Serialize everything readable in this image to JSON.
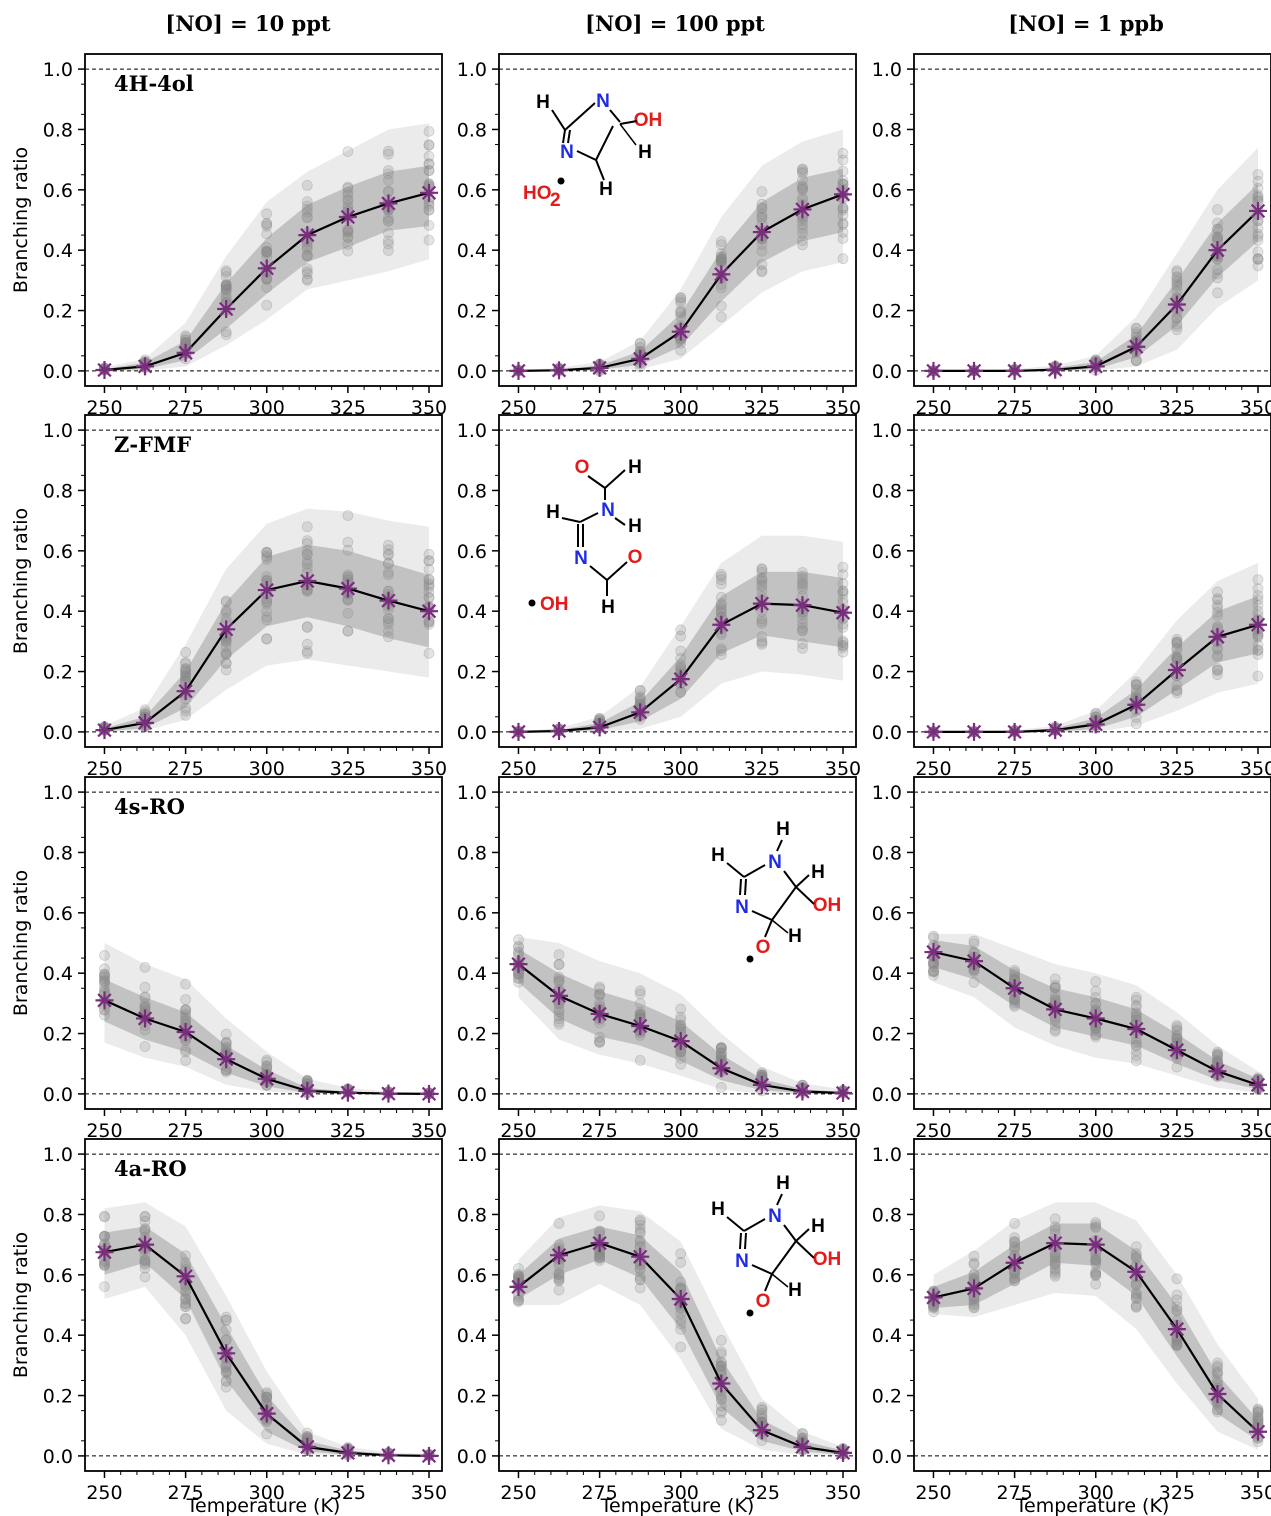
{
  "colors": {
    "band_outer": "#ebebeb",
    "band_inner": "#c2c2c2",
    "scatter": "#8a8a8a",
    "median_line": "#000000",
    "star_marker": "#7a2d7e",
    "mol_carbon": "#000000",
    "mol_nitrogen": "#1f2ce6",
    "mol_oxygen": "#e31b1b"
  },
  "chart_data": {
    "type": "line",
    "column_titles": [
      "[NO] = 10 ppt",
      "[NO] = 100 ppt",
      "[NO] = 1 ppb"
    ],
    "xlabel": "Temperature (K)",
    "ylabel": "Branching ratio",
    "x": [
      250,
      262.5,
      275,
      287.5,
      300,
      312.5,
      325,
      337.5,
      350
    ],
    "xticks": [
      250,
      275,
      300,
      325,
      350
    ],
    "xlim": [
      244,
      354
    ],
    "ylim": [
      -0.05,
      1.05
    ],
    "yticks": [
      0.0,
      0.2,
      0.4,
      0.6,
      0.8,
      1.0
    ],
    "ytick_labels": [
      "0.0",
      "0.2",
      "0.4",
      "0.6",
      "0.8",
      "1.0"
    ],
    "reference_lines": [
      0.0,
      1.0
    ],
    "grid": false,
    "rows": [
      {
        "label": "4H-4ol",
        "panels": [
          {
            "median": [
              0.003,
              0.015,
              0.06,
              0.205,
              0.34,
              0.45,
              0.51,
              0.555,
              0.59
            ],
            "inner_low": [
              0.0,
              0.006,
              0.035,
              0.14,
              0.255,
              0.36,
              0.41,
              0.465,
              0.48
            ],
            "inner_high": [
              0.006,
              0.028,
              0.1,
              0.29,
              0.44,
              0.55,
              0.61,
              0.66,
              0.68
            ],
            "outer_low": [
              0.0,
              0.0,
              0.015,
              0.085,
              0.17,
              0.27,
              0.3,
              0.33,
              0.37
            ],
            "outer_high": [
              0.012,
              0.04,
              0.16,
              0.38,
              0.56,
              0.66,
              0.73,
              0.8,
              0.82
            ]
          },
          {
            "median": [
              0.0,
              0.002,
              0.01,
              0.04,
              0.13,
              0.32,
              0.46,
              0.535,
              0.585
            ],
            "inner_low": [
              0.0,
              0.0,
              0.004,
              0.02,
              0.08,
              0.23,
              0.36,
              0.43,
              0.46
            ],
            "inner_high": [
              0.0,
              0.004,
              0.018,
              0.065,
              0.19,
              0.4,
              0.56,
              0.64,
              0.67
            ],
            "outer_low": [
              0.0,
              0.0,
              0.0,
              0.005,
              0.04,
              0.15,
              0.26,
              0.33,
              0.36
            ],
            "outer_high": [
              0.002,
              0.01,
              0.03,
              0.1,
              0.27,
              0.51,
              0.68,
              0.76,
              0.8
            ]
          },
          {
            "median": [
              0.0,
              0.0,
              0.0,
              0.004,
              0.015,
              0.08,
              0.22,
              0.4,
              0.53
            ],
            "inner_low": [
              0.0,
              0.0,
              0.0,
              0.0,
              0.006,
              0.045,
              0.15,
              0.31,
              0.43
            ],
            "inner_high": [
              0.0,
              0.0,
              0.002,
              0.01,
              0.03,
              0.12,
              0.3,
              0.49,
              0.62
            ],
            "outer_low": [
              0.0,
              0.0,
              0.0,
              0.0,
              0.0,
              0.015,
              0.07,
              0.21,
              0.3
            ],
            "outer_high": [
              0.0,
              0.002,
              0.006,
              0.018,
              0.05,
              0.18,
              0.39,
              0.6,
              0.74
            ]
          }
        ]
      },
      {
        "label": "Z-FMF",
        "panels": [
          {
            "median": [
              0.006,
              0.03,
              0.135,
              0.34,
              0.47,
              0.5,
              0.475,
              0.435,
              0.4
            ],
            "inner_low": [
              0.002,
              0.012,
              0.08,
              0.24,
              0.35,
              0.38,
              0.35,
              0.31,
              0.28
            ],
            "inner_high": [
              0.012,
              0.05,
              0.2,
              0.43,
              0.58,
              0.62,
              0.6,
              0.56,
              0.52
            ],
            "outer_low": [
              0.0,
              0.004,
              0.04,
              0.14,
              0.22,
              0.24,
              0.22,
              0.2,
              0.18
            ],
            "outer_high": [
              0.02,
              0.08,
              0.29,
              0.54,
              0.69,
              0.74,
              0.73,
              0.7,
              0.68
            ]
          },
          {
            "median": [
              0.0,
              0.003,
              0.015,
              0.065,
              0.175,
              0.355,
              0.425,
              0.42,
              0.395
            ],
            "inner_low": [
              0.0,
              0.0,
              0.006,
              0.035,
              0.11,
              0.26,
              0.32,
              0.3,
              0.28
            ],
            "inner_high": [
              0.0,
              0.006,
              0.03,
              0.1,
              0.25,
              0.45,
              0.53,
              0.53,
              0.51
            ],
            "outer_low": [
              0.0,
              0.0,
              0.0,
              0.01,
              0.05,
              0.16,
              0.2,
              0.19,
              0.17
            ],
            "outer_high": [
              0.002,
              0.012,
              0.05,
              0.15,
              0.35,
              0.56,
              0.65,
              0.65,
              0.63
            ]
          },
          {
            "median": [
              0.0,
              0.0,
              0.0,
              0.006,
              0.025,
              0.09,
              0.205,
              0.315,
              0.355
            ],
            "inner_low": [
              0.0,
              0.0,
              0.0,
              0.0,
              0.01,
              0.05,
              0.14,
              0.23,
              0.26
            ],
            "inner_high": [
              0.0,
              0.0,
              0.002,
              0.012,
              0.045,
              0.14,
              0.28,
              0.4,
              0.45
            ],
            "outer_low": [
              0.0,
              0.0,
              0.0,
              0.0,
              0.0,
              0.02,
              0.07,
              0.13,
              0.16
            ],
            "outer_high": [
              0.0,
              0.002,
              0.006,
              0.02,
              0.07,
              0.2,
              0.37,
              0.5,
              0.56
            ]
          }
        ]
      },
      {
        "label": "4s-RO",
        "panels": [
          {
            "median": [
              0.31,
              0.25,
              0.205,
              0.115,
              0.05,
              0.01,
              0.004,
              0.001,
              0.0
            ],
            "inner_low": [
              0.24,
              0.18,
              0.14,
              0.07,
              0.025,
              0.003,
              0.0,
              0.0,
              0.0
            ],
            "inner_high": [
              0.38,
              0.32,
              0.27,
              0.16,
              0.08,
              0.02,
              0.008,
              0.003,
              0.001
            ],
            "outer_low": [
              0.17,
              0.12,
              0.09,
              0.03,
              0.008,
              0.0,
              0.0,
              0.0,
              0.0
            ],
            "outer_high": [
              0.5,
              0.43,
              0.38,
              0.25,
              0.14,
              0.05,
              0.02,
              0.008,
              0.004
            ]
          },
          {
            "median": [
              0.43,
              0.325,
              0.265,
              0.225,
              0.175,
              0.085,
              0.03,
              0.008,
              0.003
            ],
            "inner_low": [
              0.37,
              0.25,
              0.19,
              0.16,
              0.11,
              0.045,
              0.012,
              0.002,
              0.0
            ],
            "inner_high": [
              0.48,
              0.4,
              0.34,
              0.3,
              0.24,
              0.13,
              0.05,
              0.016,
              0.006
            ],
            "outer_low": [
              0.32,
              0.18,
              0.13,
              0.1,
              0.06,
              0.015,
              0.0,
              0.0,
              0.0
            ],
            "outer_high": [
              0.52,
              0.5,
              0.44,
              0.4,
              0.33,
              0.2,
              0.09,
              0.035,
              0.015
            ]
          },
          {
            "median": [
              0.47,
              0.44,
              0.35,
              0.28,
              0.25,
              0.215,
              0.145,
              0.075,
              0.03
            ],
            "inner_low": [
              0.42,
              0.38,
              0.29,
              0.22,
              0.19,
              0.16,
              0.1,
              0.045,
              0.015
            ],
            "inner_high": [
              0.51,
              0.49,
              0.41,
              0.35,
              0.32,
              0.28,
              0.2,
              0.11,
              0.05
            ],
            "outer_low": [
              0.37,
              0.32,
              0.22,
              0.16,
              0.12,
              0.1,
              0.06,
              0.02,
              0.004
            ],
            "outer_high": [
              0.53,
              0.53,
              0.48,
              0.43,
              0.4,
              0.36,
              0.27,
              0.16,
              0.075
            ]
          }
        ]
      },
      {
        "label": "4a-RO",
        "panels": [
          {
            "median": [
              0.675,
              0.7,
              0.595,
              0.34,
              0.14,
              0.03,
              0.01,
              0.002,
              0.0
            ],
            "inner_low": [
              0.6,
              0.64,
              0.52,
              0.25,
              0.08,
              0.015,
              0.003,
              0.0,
              0.0
            ],
            "inner_high": [
              0.74,
              0.76,
              0.67,
              0.43,
              0.2,
              0.05,
              0.018,
              0.006,
              0.002
            ],
            "outer_low": [
              0.52,
              0.56,
              0.4,
              0.15,
              0.04,
              0.004,
              0.0,
              0.0,
              0.0
            ],
            "outer_high": [
              0.82,
              0.84,
              0.76,
              0.53,
              0.28,
              0.08,
              0.03,
              0.012,
              0.006
            ]
          },
          {
            "median": [
              0.56,
              0.665,
              0.705,
              0.66,
              0.52,
              0.24,
              0.085,
              0.03,
              0.01
            ],
            "inner_low": [
              0.52,
              0.6,
              0.65,
              0.59,
              0.42,
              0.16,
              0.05,
              0.015,
              0.003
            ],
            "inner_high": [
              0.6,
              0.72,
              0.76,
              0.73,
              0.61,
              0.32,
              0.12,
              0.05,
              0.018
            ],
            "outer_low": [
              0.5,
              0.5,
              0.57,
              0.5,
              0.32,
              0.09,
              0.02,
              0.004,
              0.0
            ],
            "outer_high": [
              0.65,
              0.79,
              0.83,
              0.81,
              0.71,
              0.44,
              0.19,
              0.08,
              0.03
            ]
          },
          {
            "median": [
              0.525,
              0.555,
              0.64,
              0.705,
              0.7,
              0.61,
              0.42,
              0.205,
              0.08
            ],
            "inner_low": [
              0.49,
              0.5,
              0.57,
              0.64,
              0.63,
              0.53,
              0.33,
              0.14,
              0.05
            ],
            "inner_high": [
              0.56,
              0.61,
              0.7,
              0.77,
              0.77,
              0.68,
              0.5,
              0.27,
              0.12
            ],
            "outer_low": [
              0.47,
              0.46,
              0.5,
              0.54,
              0.53,
              0.42,
              0.24,
              0.08,
              0.02
            ],
            "outer_high": [
              0.6,
              0.68,
              0.78,
              0.84,
              0.84,
              0.78,
              0.6,
              0.37,
              0.19
            ]
          }
        ]
      }
    ],
    "annotations": [
      {
        "row": 0,
        "col": 1,
        "species": "HO2•",
        "atoms": [
          "H",
          "N",
          "N",
          "H",
          "H",
          "OH",
          "H"
        ],
        "radical": "HO",
        "radical_sub": "2"
      },
      {
        "row": 1,
        "col": 1,
        "species": "OH•",
        "atoms": [
          "O",
          "H",
          "H",
          "N",
          "H",
          "N",
          "O",
          "H"
        ],
        "radical": "OH"
      },
      {
        "row": 2,
        "col": 1,
        "species": "4s-RO",
        "atoms": [
          "H",
          "H",
          "N",
          "H",
          "N",
          "OH",
          "O",
          "H"
        ]
      },
      {
        "row": 3,
        "col": 1,
        "species": "4a-RO",
        "atoms": [
          "H",
          "H",
          "N",
          "H",
          "N",
          "OH",
          "O",
          "H"
        ]
      }
    ]
  }
}
